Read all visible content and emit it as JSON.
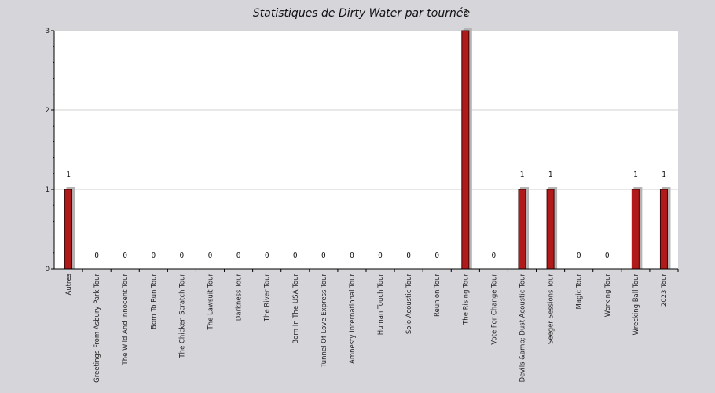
{
  "chart_data": {
    "type": "bar",
    "title": "Statistiques de Dirty Water par tournée",
    "xlabel": "",
    "ylabel": "",
    "ylim": [
      0,
      3
    ],
    "yticks": [
      0,
      1,
      2,
      3
    ],
    "grid": true,
    "categories": [
      "Autres",
      "Greetings From Asbury Park Tour",
      "The Wild And Innocent Tour",
      "Born To Run Tour",
      "The Chicken Scratch Tour",
      "The Lawsuit Tour",
      "Darkness Tour",
      "The River Tour",
      "Born In The USA Tour",
      "Tunnel Of Love Express Tour",
      "Amnesty International Tour",
      "Human Touch Tour",
      "Solo Acoustic Tour",
      "Reunion Tour",
      "The Rising Tour",
      "Vote For Change Tour",
      "Devils &amp; Dust Acoustic Tour",
      "Seeger Sessions Tour",
      "Magic Tour",
      "Working Tour",
      "Wrecking Ball Tour",
      "2023 Tour"
    ],
    "values": [
      1,
      0,
      0,
      0,
      0,
      0,
      0,
      0,
      0,
      0,
      0,
      0,
      0,
      0,
      3,
      0,
      1,
      1,
      0,
      0,
      1,
      1
    ],
    "colors": {
      "background": "#d6d5da",
      "plot_background": "#ffffff",
      "bar": "#b01a1a",
      "bar_border": "#3a0606",
      "bar_shadow": "#b4b4b4",
      "grid": "#d0d0d0"
    }
  }
}
